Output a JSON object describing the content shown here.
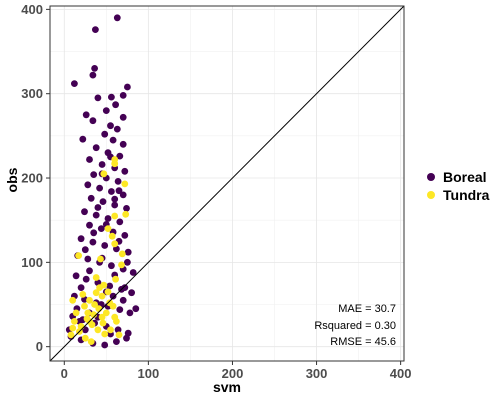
{
  "chart_data": {
    "type": "scatter",
    "xlabel": "svm",
    "ylabel": "obs",
    "xlim": [
      -17,
      404
    ],
    "ylim": [
      -17,
      404
    ],
    "x_ticks": [
      0,
      100,
      200,
      300,
      400
    ],
    "y_ticks": [
      0,
      100,
      200,
      300,
      400
    ],
    "grid": true,
    "reference_line": "y = x",
    "legend_position": "right",
    "annotations": [
      "MAE = 30.7",
      "Rsquared = 0.30",
      "RMSE = 45.6"
    ],
    "series": [
      {
        "name": "Boreal",
        "color": "#440154",
        "points": [
          [
            63,
            390
          ],
          [
            37,
            376
          ],
          [
            36,
            330
          ],
          [
            34,
            322
          ],
          [
            12,
            312
          ],
          [
            75,
            308
          ],
          [
            70,
            298
          ],
          [
            56,
            296
          ],
          [
            40,
            295
          ],
          [
            61,
            287
          ],
          [
            50,
            280
          ],
          [
            26,
            275
          ],
          [
            70,
            272
          ],
          [
            34,
            268
          ],
          [
            55,
            262
          ],
          [
            63,
            258
          ],
          [
            48,
            252
          ],
          [
            22,
            246
          ],
          [
            58,
            245
          ],
          [
            70,
            240
          ],
          [
            38,
            236
          ],
          [
            52,
            230
          ],
          [
            66,
            226
          ],
          [
            30,
            222
          ],
          [
            45,
            216
          ],
          [
            60,
            212
          ],
          [
            72,
            208
          ],
          [
            35,
            204
          ],
          [
            50,
            200
          ],
          [
            64,
            196
          ],
          [
            28,
            192
          ],
          [
            42,
            188
          ],
          [
            56,
            184
          ],
          [
            70,
            180
          ],
          [
            32,
            176
          ],
          [
            46,
            172
          ],
          [
            60,
            168
          ],
          [
            74,
            164
          ],
          [
            24,
            160
          ],
          [
            38,
            156
          ],
          [
            52,
            152
          ],
          [
            66,
            148
          ],
          [
            30,
            144
          ],
          [
            44,
            140
          ],
          [
            58,
            136
          ],
          [
            72,
            132
          ],
          [
            20,
            128
          ],
          [
            34,
            124
          ],
          [
            48,
            120
          ],
          [
            62,
            116
          ],
          [
            76,
            112
          ],
          [
            16,
            108
          ],
          [
            28,
            104
          ],
          [
            42,
            100
          ],
          [
            56,
            96
          ],
          [
            70,
            92
          ],
          [
            82,
            88
          ],
          [
            14,
            84
          ],
          [
            26,
            80
          ],
          [
            40,
            76
          ],
          [
            54,
            72
          ],
          [
            68,
            68
          ],
          [
            80,
            64
          ],
          [
            12,
            60
          ],
          [
            24,
            56
          ],
          [
            38,
            52
          ],
          [
            52,
            48
          ],
          [
            66,
            44
          ],
          [
            78,
            40
          ],
          [
            10,
            36
          ],
          [
            22,
            32
          ],
          [
            36,
            28
          ],
          [
            50,
            24
          ],
          [
            64,
            20
          ],
          [
            76,
            16
          ],
          [
            8,
            12
          ],
          [
            20,
            8
          ],
          [
            34,
            4
          ],
          [
            48,
            2
          ],
          [
            62,
            6
          ],
          [
            74,
            10
          ],
          [
            6,
            20
          ],
          [
            18,
            30
          ],
          [
            30,
            40
          ],
          [
            44,
            50
          ],
          [
            58,
            60
          ],
          [
            72,
            70
          ],
          [
            60,
            175
          ],
          [
            45,
            205
          ],
          [
            55,
            225
          ],
          [
            65,
            185
          ],
          [
            40,
            165
          ],
          [
            50,
            145
          ],
          [
            35,
            135
          ],
          [
            65,
            125
          ],
          [
            25,
            115
          ],
          [
            45,
            105
          ],
          [
            75,
            100
          ],
          [
            30,
            90
          ],
          [
            60,
            85
          ],
          [
            20,
            70
          ],
          [
            50,
            65
          ],
          [
            15,
            45
          ],
          [
            70,
            55
          ],
          [
            40,
            35
          ],
          [
            85,
            45
          ],
          [
            55,
            15
          ],
          [
            25,
            20
          ]
        ]
      },
      {
        "name": "Tundra",
        "color": "#fde725",
        "points": [
          [
            60,
            222
          ],
          [
            60,
            217
          ],
          [
            47,
            205
          ],
          [
            72,
            193
          ],
          [
            60,
            155
          ],
          [
            52,
            140
          ],
          [
            73,
            157
          ],
          [
            57,
            131
          ],
          [
            60,
            122
          ],
          [
            69,
            110
          ],
          [
            68,
            97
          ],
          [
            43,
            104
          ],
          [
            61,
            80
          ],
          [
            17,
            108
          ],
          [
            45,
            60
          ],
          [
            38,
            82
          ],
          [
            47,
            73
          ],
          [
            38,
            64
          ],
          [
            24,
            48
          ],
          [
            30,
            55
          ],
          [
            54,
            52
          ],
          [
            41,
            45
          ],
          [
            50,
            40
          ],
          [
            58,
            48
          ],
          [
            35,
            38
          ],
          [
            27,
            33
          ],
          [
            62,
            30
          ],
          [
            46,
            28
          ],
          [
            12,
            30
          ],
          [
            20,
            24
          ],
          [
            33,
            26
          ],
          [
            48,
            15
          ],
          [
            8,
            14
          ],
          [
            65,
            14
          ],
          [
            55,
            20
          ],
          [
            14,
            40
          ],
          [
            25,
            10
          ],
          [
            32,
            6
          ],
          [
            10,
            55
          ],
          [
            60,
            35
          ],
          [
            42,
            70
          ],
          [
            30,
            30
          ],
          [
            18,
            18
          ],
          [
            52,
            65
          ],
          [
            36,
            50
          ],
          [
            22,
            62
          ],
          [
            45,
            35
          ],
          [
            10,
            22
          ],
          [
            28,
            40
          ],
          [
            40,
            20
          ]
        ]
      }
    ]
  }
}
